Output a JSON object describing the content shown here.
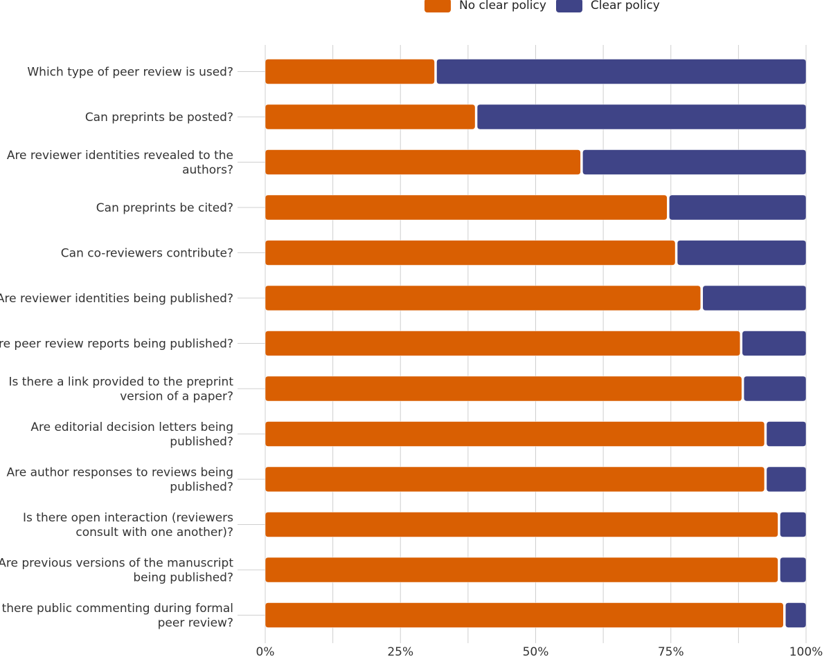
{
  "chart_data": {
    "type": "bar",
    "orientation": "horizontal",
    "stacked": true,
    "legend_position": "top",
    "legend": [
      "No clear policy",
      "Clear policy"
    ],
    "categories": [
      "Which type of peer review is used?",
      "Can preprints be posted?",
      "Are reviewer identities revealed to the authors?",
      "Can preprints be cited?",
      "Can co-reviewers contribute?",
      "Are reviewer identities being published?",
      "Are peer review reports being published?",
      "Is there a link provided to the preprint version of a paper?",
      "Are editorial decision letters being published?",
      "Are author responses to reviews being published?",
      "Is there open interaction (reviewers consult with one another)?",
      "Are previous versions of the manuscript being published?",
      "Is there public commenting during formal peer review?"
    ],
    "category_lines": [
      [
        "Which type of peer review is used?"
      ],
      [
        "Can preprints be posted?"
      ],
      [
        "Are reviewer identities revealed to the",
        "authors?"
      ],
      [
        "Can preprints be cited?"
      ],
      [
        "Can co-reviewers contribute?"
      ],
      [
        "Are reviewer identities being published?"
      ],
      [
        "Are peer review reports being published?"
      ],
      [
        "Is there a link provided to the preprint",
        "version of a paper?"
      ],
      [
        "Are editorial decision letters being",
        "published?"
      ],
      [
        "Are author responses to reviews being",
        "published?"
      ],
      [
        "Is there open interaction (reviewers",
        "consult with one another)?"
      ],
      [
        "Are previous versions of the manuscript",
        "being published?"
      ],
      [
        "Is there public commenting during formal",
        "peer review?"
      ]
    ],
    "series": [
      {
        "name": "No clear policy",
        "color": "#d95f02",
        "values": [
          31.5,
          39,
          58.5,
          74.5,
          76,
          80.7,
          88,
          88.3,
          92.5,
          92.5,
          95,
          95,
          96
        ]
      },
      {
        "name": "Clear policy",
        "color": "#3f4487",
        "values": [
          68.5,
          61,
          41.5,
          25.5,
          24,
          19.3,
          12,
          11.7,
          7.5,
          7.5,
          5,
          5,
          4
        ]
      }
    ],
    "xlim": [
      0,
      100
    ],
    "x_ticks": [
      "0%",
      "25%",
      "50%",
      "75%",
      "100%"
    ],
    "x_tick_values": [
      0,
      25,
      50,
      75,
      100
    ],
    "grid": true,
    "xlabel": "",
    "ylabel": ""
  }
}
